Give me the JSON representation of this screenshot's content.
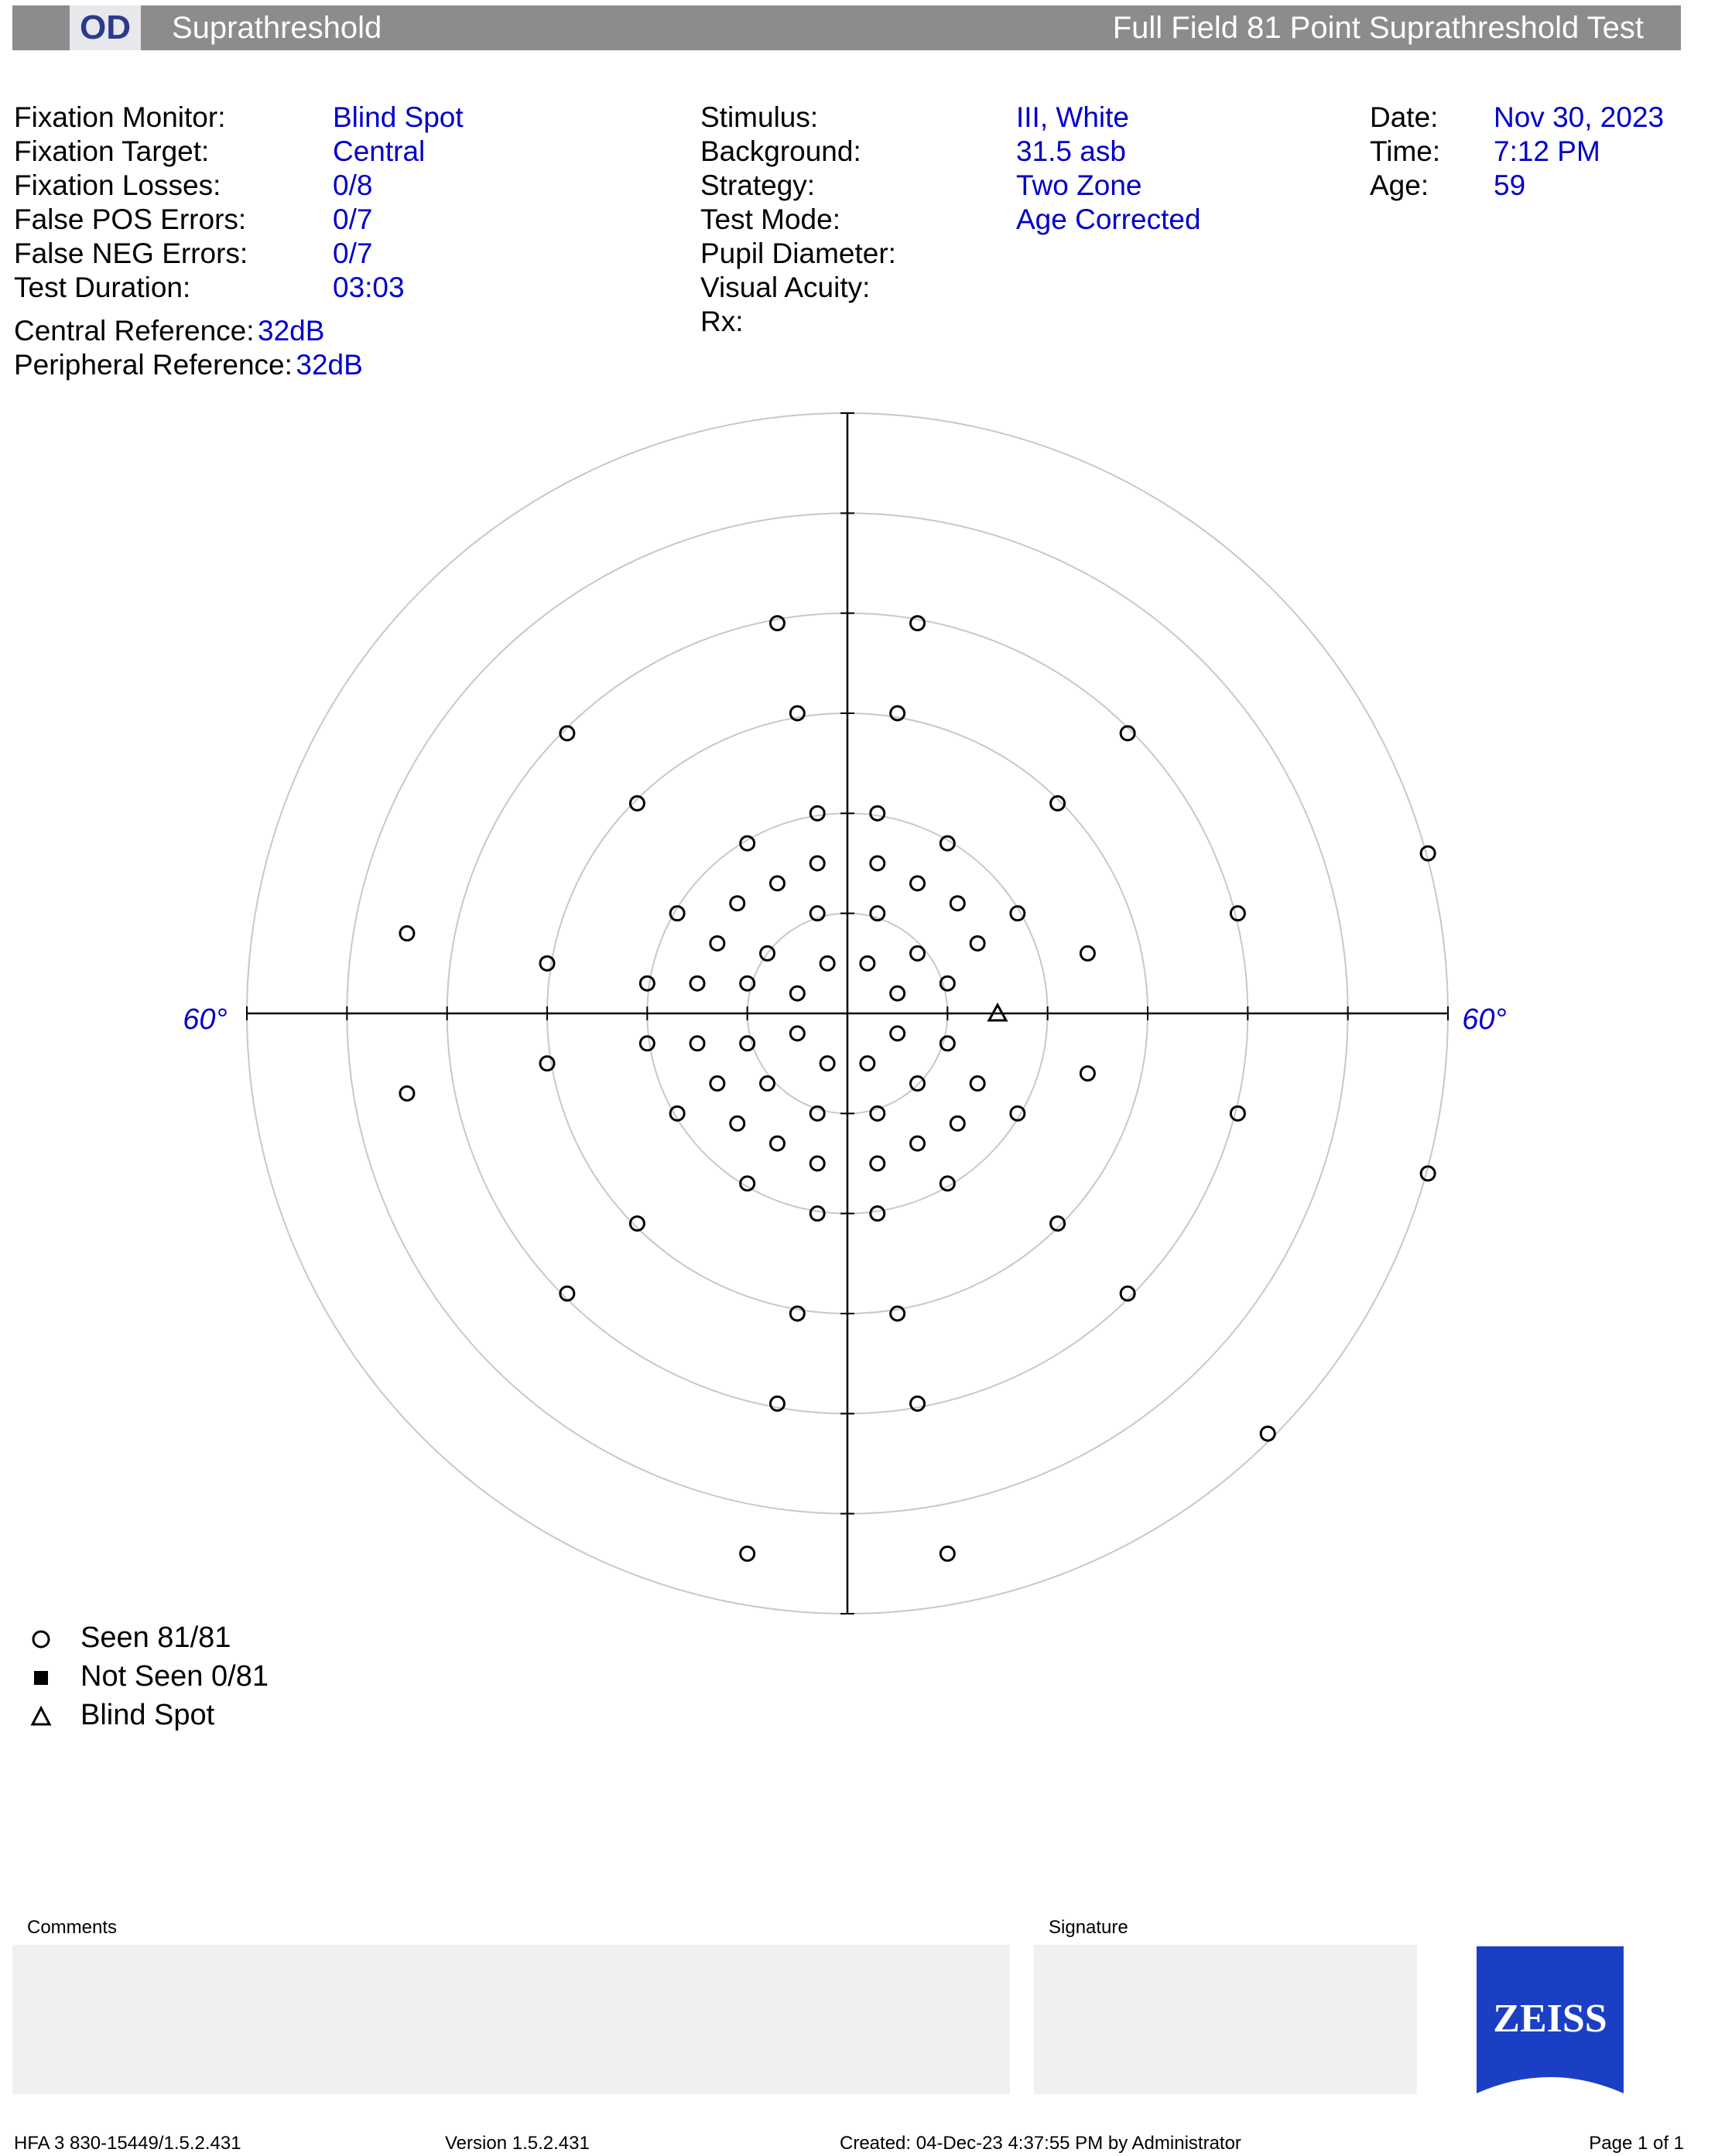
{
  "header": {
    "eye": "OD",
    "test_type": "Suprathreshold",
    "test_name": "Full Field 81 Point Suprathreshold Test"
  },
  "info_left": [
    {
      "label": "Fixation Monitor:",
      "value": "Blind Spot"
    },
    {
      "label": "Fixation Target:",
      "value": "Central"
    },
    {
      "label": "Fixation Losses:",
      "value": "0/8"
    },
    {
      "label": "False POS Errors:",
      "value": "0/7"
    },
    {
      "label": "False NEG Errors:",
      "value": "0/7"
    },
    {
      "label": "Test Duration:",
      "value": "03:03"
    }
  ],
  "references": [
    {
      "label": "Central Reference:",
      "value": "32dB"
    },
    {
      "label": "Peripheral Reference:",
      "value": "32dB"
    }
  ],
  "info_mid": [
    {
      "label": "Stimulus:",
      "value": "III, White"
    },
    {
      "label": "Background:",
      "value": "31.5 asb"
    },
    {
      "label": "Strategy:",
      "value": "Two Zone"
    },
    {
      "label": "Test Mode:",
      "value": "Age Corrected"
    },
    {
      "label": "Pupil Diameter:",
      "value": ""
    },
    {
      "label": "Visual Acuity:",
      "value": ""
    },
    {
      "label": "Rx:",
      "value": ""
    }
  ],
  "info_right": [
    {
      "label": "Date:",
      "value": "Nov 30, 2023"
    },
    {
      "label": "Time:",
      "value": "7:12 PM"
    },
    {
      "label": "Age:",
      "value": "59"
    }
  ],
  "chart_data": {
    "type": "scatter",
    "description_units": "degrees of visual field",
    "axis_label_left": "60°",
    "axis_label_right": "60°",
    "range_deg": 60,
    "rings_deg": [
      10,
      20,
      30,
      40,
      50,
      60
    ],
    "points_seen": [
      [
        -7,
        39
      ],
      [
        7,
        39
      ],
      [
        -5,
        30
      ],
      [
        5,
        30
      ],
      [
        -28,
        28
      ],
      [
        28,
        28
      ],
      [
        -21,
        21
      ],
      [
        21,
        21
      ],
      [
        -3,
        20
      ],
      [
        3,
        20
      ],
      [
        -10,
        17
      ],
      [
        10,
        17
      ],
      [
        -3,
        15
      ],
      [
        3,
        15
      ],
      [
        -7,
        13
      ],
      [
        7,
        13
      ],
      [
        -11,
        11
      ],
      [
        11,
        11
      ],
      [
        -17,
        10
      ],
      [
        17,
        10
      ],
      [
        -3,
        10
      ],
      [
        3,
        10
      ],
      [
        -13,
        7
      ],
      [
        13,
        7
      ],
      [
        -8,
        6
      ],
      [
        7,
        6
      ],
      [
        -44,
        8
      ],
      [
        -30,
        5
      ],
      [
        -20,
        3
      ],
      [
        -15,
        3
      ],
      [
        -10,
        3
      ],
      [
        -2,
        5
      ],
      [
        2,
        5
      ],
      [
        -5,
        2
      ],
      [
        5,
        2
      ],
      [
        10,
        3
      ],
      [
        24,
        6
      ],
      [
        39,
        10
      ],
      [
        58,
        16
      ],
      [
        -20,
        -3
      ],
      [
        -15,
        -3
      ],
      [
        -10,
        -3
      ],
      [
        -5,
        -2
      ],
      [
        5,
        -2
      ],
      [
        10,
        -3
      ],
      [
        -30,
        -5
      ],
      [
        24,
        -6
      ],
      [
        -44,
        -8
      ],
      [
        -13,
        -7
      ],
      [
        -8,
        -7
      ],
      [
        -2,
        -5
      ],
      [
        2,
        -5
      ],
      [
        7,
        -7
      ],
      [
        13,
        -7
      ],
      [
        -17,
        -10
      ],
      [
        -11,
        -11
      ],
      [
        -3,
        -10
      ],
      [
        3,
        -10
      ],
      [
        11,
        -11
      ],
      [
        17,
        -10
      ],
      [
        39,
        -10
      ],
      [
        -7,
        -13
      ],
      [
        -3,
        -15
      ],
      [
        3,
        -15
      ],
      [
        7,
        -13
      ],
      [
        -10,
        -17
      ],
      [
        10,
        -17
      ],
      [
        -3,
        -20
      ],
      [
        3,
        -20
      ],
      [
        -21,
        -21
      ],
      [
        21,
        -21
      ],
      [
        58,
        -16
      ],
      [
        -28,
        -28
      ],
      [
        28,
        -28
      ],
      [
        -5,
        -30
      ],
      [
        5,
        -30
      ],
      [
        -7,
        -39
      ],
      [
        7,
        -39
      ],
      [
        42,
        -42
      ],
      [
        -10,
        -54
      ],
      [
        10,
        -54
      ]
    ],
    "points_not_seen": [],
    "blind_spot": [
      15,
      0
    ]
  },
  "legend": [
    {
      "symbol": "circle",
      "label": "Seen 81/81"
    },
    {
      "symbol": "square",
      "label": "Not Seen 0/81"
    },
    {
      "symbol": "triangle",
      "label": "Blind Spot"
    }
  ],
  "comments_label": "Comments",
  "signature_label": "Signature",
  "logo_text": "ZEISS",
  "colors": {
    "value_blue": "#0000c8",
    "header_grey": "#8c8c8c",
    "zeiss_blue": "#1a3fc4"
  },
  "footer": {
    "device": "HFA 3 830-15449/1.5.2.431",
    "version": "Version 1.5.2.431",
    "created": "Created: 04-Dec-23 4:37:55 PM by Administrator",
    "page": "Page 1 of 1"
  }
}
